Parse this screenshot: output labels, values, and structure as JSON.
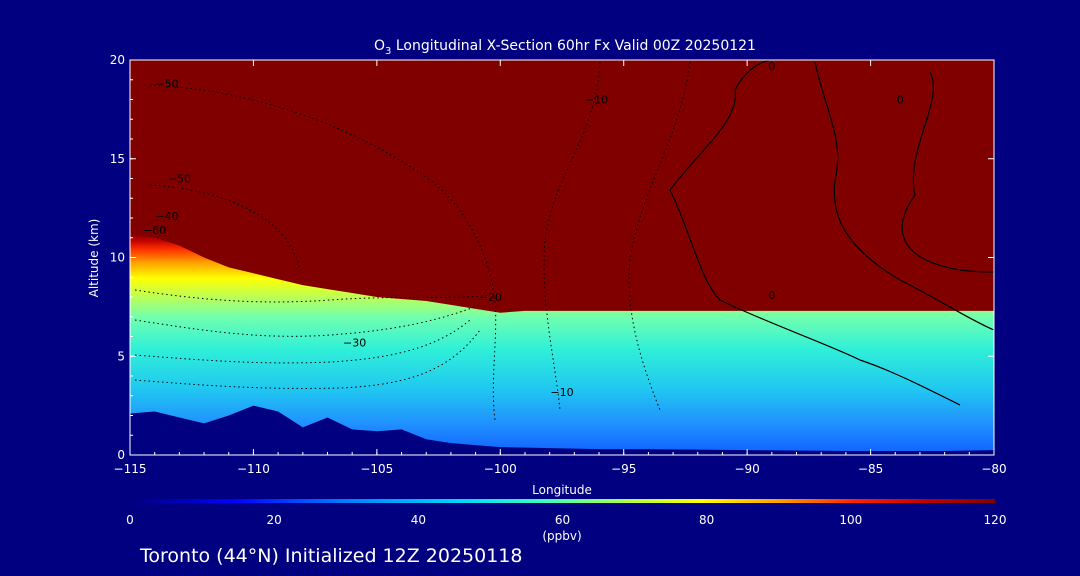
{
  "chart_data": {
    "type": "heatmap",
    "title_prefix": "O",
    "title_sub": "3",
    "title_rest": " Longitudinal X-Section 60hr  Fx Valid 00Z 20250121",
    "xlabel": "Longitude",
    "ylabel": "Altitude (km)",
    "xlim": [
      -115,
      -80
    ],
    "ylim": [
      0,
      20
    ],
    "x_ticks": [
      -115,
      -110,
      -105,
      -100,
      -95,
      -90,
      -85,
      -80
    ],
    "x_tick_labels": [
      "−115",
      "−110",
      "−105",
      "−100",
      "−95",
      "−90",
      "−85",
      "−80"
    ],
    "y_ticks": [
      0,
      5,
      10,
      15,
      20
    ],
    "y_tick_labels": [
      "0",
      "5",
      "10",
      "15",
      "20"
    ],
    "colorbar": {
      "min": 0,
      "max": 120,
      "ticks": [
        0,
        20,
        40,
        60,
        80,
        100,
        120
      ],
      "tick_labels": [
        "0",
        "20",
        "40",
        "60",
        "80",
        "100",
        "120"
      ],
      "units": "(ppbv)",
      "colors": [
        "#000080",
        "#0000ff",
        "#0064ff",
        "#00b4ff",
        "#00f0f0",
        "#40ffb0",
        "#a0ff50",
        "#ffff00",
        "#ffa000",
        "#ff3000",
        "#c00000",
        "#800000"
      ]
    },
    "tropopause_km": [
      [
        -115,
        11.2
      ],
      [
        -114,
        11.0
      ],
      [
        -113,
        10.6
      ],
      [
        -112,
        10.0
      ],
      [
        -111,
        9.5
      ],
      [
        -110,
        9.2
      ],
      [
        -109,
        8.9
      ],
      [
        -108,
        8.6
      ],
      [
        -107,
        8.4
      ],
      [
        -106,
        8.2
      ],
      [
        -105,
        8.0
      ],
      [
        -104,
        7.9
      ],
      [
        -103,
        7.8
      ],
      [
        -102,
        7.6
      ],
      [
        -101,
        7.4
      ],
      [
        -100,
        7.2
      ],
      [
        -99,
        7.3
      ],
      [
        -80,
        7.3
      ]
    ],
    "terrain_km": [
      [
        -115,
        2.1
      ],
      [
        -114,
        2.2
      ],
      [
        -113,
        1.9
      ],
      [
        -112,
        1.6
      ],
      [
        -111,
        2.0
      ],
      [
        -110,
        2.5
      ],
      [
        -109,
        2.2
      ],
      [
        -108,
        1.4
      ],
      [
        -107,
        1.9
      ],
      [
        -106,
        1.3
      ],
      [
        -105,
        1.2
      ],
      [
        -104,
        1.3
      ],
      [
        -103,
        0.8
      ],
      [
        -102,
        0.6
      ],
      [
        -101,
        0.5
      ],
      [
        -100,
        0.4
      ],
      [
        -98,
        0.35
      ],
      [
        -96,
        0.3
      ],
      [
        -94,
        0.3
      ],
      [
        -90,
        0.25
      ],
      [
        -86,
        0.2
      ],
      [
        -82,
        0.2
      ],
      [
        -80,
        0.25
      ]
    ],
    "contour_labels": [
      {
        "text": "−50",
        "lon": -113.5,
        "alt": 18.6
      },
      {
        "text": "−50",
        "lon": -113.0,
        "alt": 13.8
      },
      {
        "text": "−40",
        "lon": -113.5,
        "alt": 11.9
      },
      {
        "text": "−60",
        "lon": -114.0,
        "alt": 11.2
      },
      {
        "text": "−30",
        "lon": -105.9,
        "alt": 5.5
      },
      {
        "text": "−20",
        "lon": -100.4,
        "alt": 7.8
      },
      {
        "text": "−10",
        "lon": -96.1,
        "alt": 17.8
      },
      {
        "text": "−10",
        "lon": -97.5,
        "alt": 3.0
      },
      {
        "text": "0",
        "lon": -89.0,
        "alt": 7.9
      },
      {
        "text": "0",
        "lon": -89.0,
        "alt": 19.5
      },
      {
        "text": "0",
        "lon": -83.8,
        "alt": 17.8
      }
    ]
  },
  "footer": {
    "location": "Toronto (44°N) Initialized 12Z 20250118"
  }
}
